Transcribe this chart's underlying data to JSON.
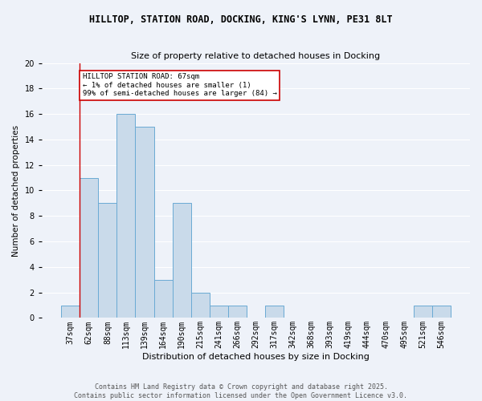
{
  "title1": "HILLTOP, STATION ROAD, DOCKING, KING'S LYNN, PE31 8LT",
  "title2": "Size of property relative to detached houses in Docking",
  "xlabel": "Distribution of detached houses by size in Docking",
  "ylabel": "Number of detached properties",
  "categories": [
    "37sqm",
    "62sqm",
    "88sqm",
    "113sqm",
    "139sqm",
    "164sqm",
    "190sqm",
    "215sqm",
    "241sqm",
    "266sqm",
    "292sqm",
    "317sqm",
    "342sqm",
    "368sqm",
    "393sqm",
    "419sqm",
    "444sqm",
    "470sqm",
    "495sqm",
    "521sqm",
    "546sqm"
  ],
  "values": [
    1,
    11,
    9,
    16,
    15,
    3,
    9,
    2,
    1,
    1,
    0,
    1,
    0,
    0,
    0,
    0,
    0,
    0,
    0,
    1,
    1
  ],
  "bar_color": "#c9daea",
  "bar_edge_color": "#6aaad4",
  "annotation_text": "HILLTOP STATION ROAD: 67sqm\n← 1% of detached houses are smaller (1)\n99% of semi-detached houses are larger (84) →",
  "annotation_box_color": "#ffffff",
  "annotation_box_edge": "#cc0000",
  "red_line_color": "#cc0000",
  "footer": "Contains HM Land Registry data © Crown copyright and database right 2025.\nContains public sector information licensed under the Open Government Licence v3.0.",
  "ylim": [
    0,
    20
  ],
  "yticks": [
    0,
    2,
    4,
    6,
    8,
    10,
    12,
    14,
    16,
    18,
    20
  ],
  "background_color": "#eef2f9",
  "grid_color": "#ffffff",
  "title1_fontsize": 8.5,
  "title2_fontsize": 8,
  "xlabel_fontsize": 8,
  "ylabel_fontsize": 7.5,
  "tick_fontsize": 7,
  "footer_fontsize": 6,
  "annot_fontsize": 6.5
}
